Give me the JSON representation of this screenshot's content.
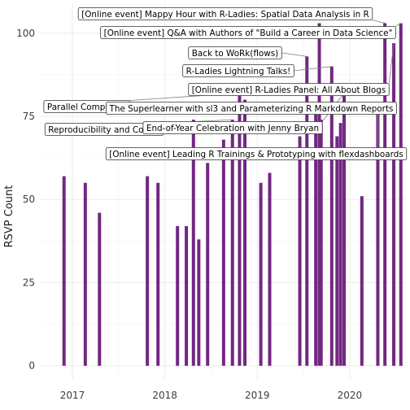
{
  "colors": {
    "bar": "#722781",
    "panel": "#ffffff",
    "grid": "#ebebeb"
  },
  "chart_data": {
    "type": "bar",
    "title": "",
    "xlabel": "",
    "ylabel": "RSVP Count",
    "xlim": [
      "2016-09-01",
      "2020-08-10"
    ],
    "ylim": [
      -4,
      109
    ],
    "grid": true,
    "legend": "none",
    "y_ticks": [
      {
        "value": 0,
        "label": "0"
      },
      {
        "value": 25,
        "label": "25"
      },
      {
        "value": 50,
        "label": "50"
      },
      {
        "value": 75,
        "label": "75"
      },
      {
        "value": 100,
        "label": "100"
      }
    ],
    "x_ticks": [
      {
        "value": "2017-01-01",
        "label": "2017"
      },
      {
        "value": "2018-01-01",
        "label": "2018"
      },
      {
        "value": "2019-01-01",
        "label": "2019"
      },
      {
        "value": "2020-01-01",
        "label": "2020"
      }
    ],
    "bars": [
      {
        "date": "2016-11-29",
        "value": 57
      },
      {
        "date": "2017-02-21",
        "value": 55
      },
      {
        "date": "2017-04-18",
        "value": 46
      },
      {
        "date": "2017-10-24",
        "value": 57
      },
      {
        "date": "2017-12-05",
        "value": 55
      },
      {
        "date": "2018-02-20",
        "value": 42
      },
      {
        "date": "2018-03-27",
        "value": 42
      },
      {
        "date": "2018-04-24",
        "value": 74
      },
      {
        "date": "2018-05-15",
        "value": 38
      },
      {
        "date": "2018-06-19",
        "value": 61
      },
      {
        "date": "2018-08-21",
        "value": 68
      },
      {
        "date": "2018-09-25",
        "value": 74
      },
      {
        "date": "2018-10-23",
        "value": 82
      },
      {
        "date": "2018-11-13",
        "value": 80
      },
      {
        "date": "2019-01-15",
        "value": 55
      },
      {
        "date": "2019-02-19",
        "value": 58
      },
      {
        "date": "2019-06-18",
        "value": 69
      },
      {
        "date": "2019-07-16",
        "value": 93
      },
      {
        "date": "2019-08-20",
        "value": 78
      },
      {
        "date": "2019-09-03",
        "value": 103
      },
      {
        "date": "2019-09-10",
        "value": 74
      },
      {
        "date": "2019-10-22",
        "value": 90
      },
      {
        "date": "2019-11-12",
        "value": 69
      },
      {
        "date": "2019-11-26",
        "value": 73
      },
      {
        "date": "2019-12-10",
        "value": 82
      },
      {
        "date": "2020-02-18",
        "value": 51
      },
      {
        "date": "2020-04-21",
        "value": 76
      },
      {
        "date": "2020-05-19",
        "value": 103
      },
      {
        "date": "2020-06-23",
        "value": 97
      },
      {
        "date": "2020-07-21",
        "value": 103
      }
    ],
    "annotations": [
      {
        "text": "[Online event] Mappy Hour with R-Ladies: Spatial Data Analysis in R",
        "date": "2020-05-19",
        "value": 103
      },
      {
        "text": "[Online event] Q&A with Authors of \"Build a Career in Data Science\"",
        "date": "2020-07-21",
        "value": 103
      },
      {
        "text": "Back to WoRk(flows)",
        "date": "2019-07-16",
        "value": 93
      },
      {
        "text": "R-Ladies Lightning Talks!",
        "date": "2019-10-22",
        "value": 90
      },
      {
        "text": "[Online event] R-Ladies Panel: All About Blogs",
        "date": "2020-06-23",
        "value": 97
      },
      {
        "text": "Parallel Computing",
        "date": "2018-10-23",
        "value": 82
      },
      {
        "text": "The Superlearner with sl3 and Parameterizing R Markdown Reports",
        "date": "2019-08-20",
        "value": 78
      },
      {
        "text": "Reproducibility and Comm",
        "date": "2018-09-25",
        "value": 74
      },
      {
        "text": "End-of-Year Celebration with Jenny Bryan",
        "date": "2019-12-10",
        "value": 82
      },
      {
        "text": "[Online event] Leading R Trainings & Prototyping with flexdashboards",
        "date": "2020-04-21",
        "value": 76
      }
    ]
  }
}
